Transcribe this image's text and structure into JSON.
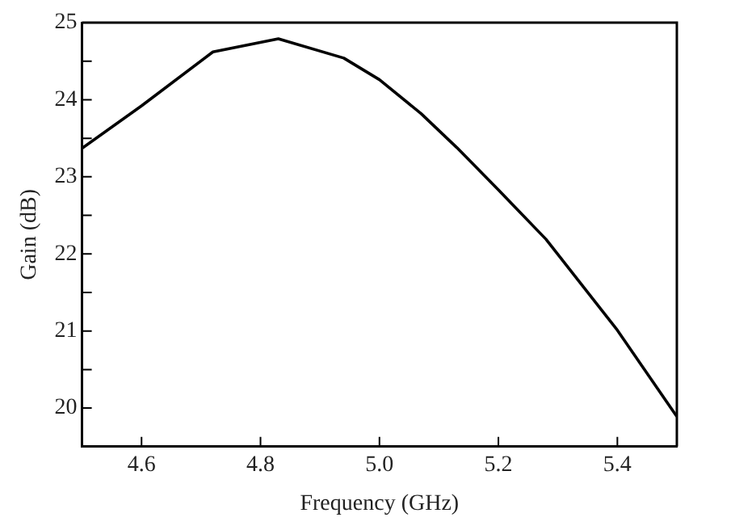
{
  "chart_data": {
    "type": "line",
    "xlabel": "Frequency (GHz)",
    "ylabel": "Gain (dB)",
    "x": [
      4.5,
      4.6,
      4.72,
      4.83,
      4.94,
      5.0,
      5.07,
      5.13,
      5.2,
      5.28,
      5.4,
      5.5
    ],
    "series": [
      {
        "color": "#000000",
        "values": [
          23.37,
          23.92,
          24.62,
          24.79,
          24.54,
          24.26,
          23.82,
          23.38,
          22.83,
          22.19,
          21.01,
          19.89
        ]
      }
    ],
    "xlim": [
      4.5,
      5.5
    ],
    "xticks": [
      {
        "value": 4.6,
        "label": "4.6"
      },
      {
        "value": 4.8,
        "label": "4.8"
      },
      {
        "value": 5.0,
        "label": "5.0"
      },
      {
        "value": 5.2,
        "label": "5.2"
      },
      {
        "value": 5.4,
        "label": "5.4"
      }
    ],
    "ylim": [
      19.5,
      25
    ],
    "yticks": [
      20,
      {
        "value": 20.5,
        "label": null
      },
      21,
      {
        "value": 21.5,
        "label": null
      },
      22,
      {
        "value": 22.5,
        "label": null
      },
      23,
      {
        "value": 23.5,
        "label": null
      },
      24,
      {
        "value": 24.5,
        "label": null
      },
      25
    ],
    "grid": false,
    "legend": false,
    "marker": "none",
    "line_style": "solid"
  }
}
